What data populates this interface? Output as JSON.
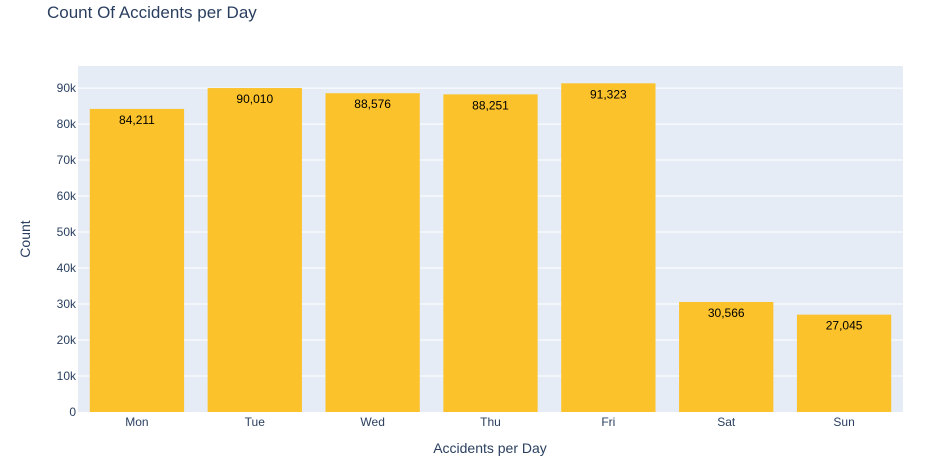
{
  "chart_data": {
    "type": "bar",
    "title": "Count Of Accidents per Day",
    "xlabel": "Accidents per Day",
    "ylabel": "Count",
    "categories": [
      "Mon",
      "Tue",
      "Wed",
      "Thu",
      "Fri",
      "Sat",
      "Sun"
    ],
    "values": [
      84211,
      90010,
      88576,
      88251,
      91323,
      30566,
      27045
    ],
    "value_labels": [
      "84,211",
      "90,010",
      "88,576",
      "88,251",
      "91,323",
      "30,566",
      "27,045"
    ],
    "ylim": [
      0,
      96134
    ],
    "yticks": [
      0,
      10000,
      20000,
      30000,
      40000,
      50000,
      60000,
      70000,
      80000,
      90000
    ],
    "ytick_labels": [
      "0",
      "10k",
      "20k",
      "30k",
      "40k",
      "50k",
      "60k",
      "70k",
      "80k",
      "90k"
    ],
    "grid": true,
    "colors": {
      "bar": "#fbc22c",
      "plot_bg": "#e5ecf6",
      "grid": "#ffffff",
      "text": "#2a3f5f"
    }
  }
}
